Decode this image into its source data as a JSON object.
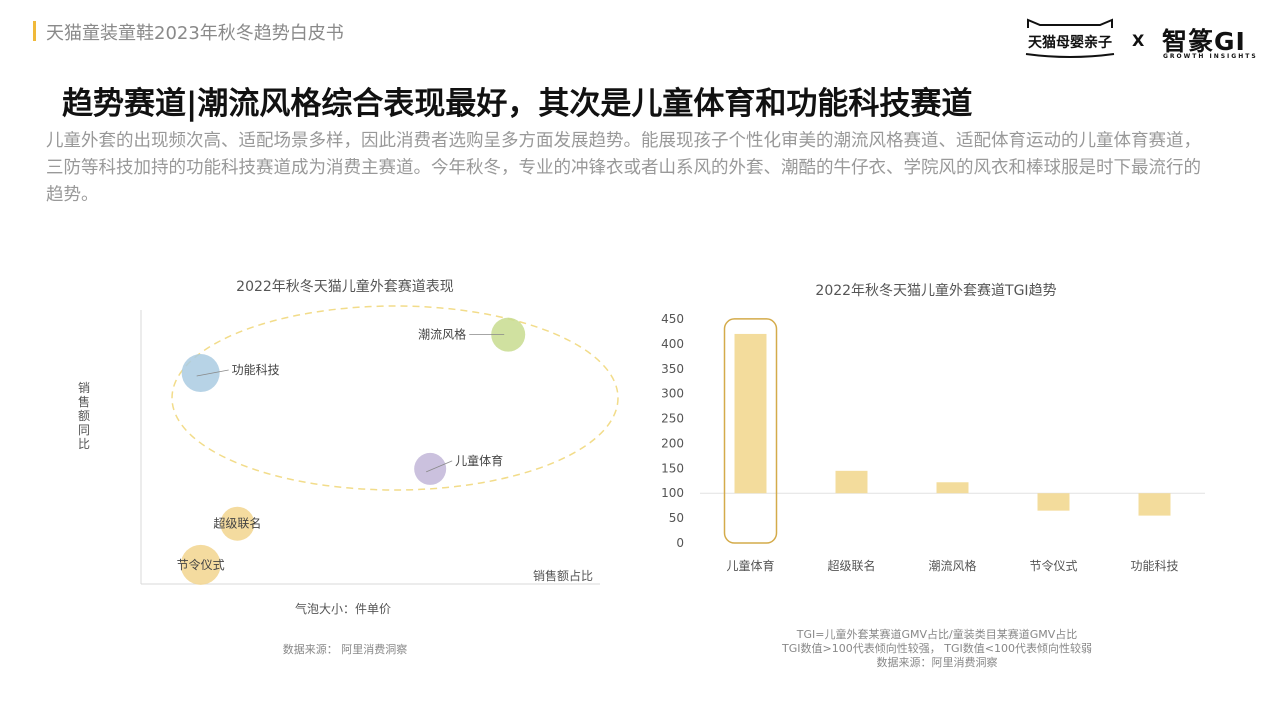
{
  "header": {
    "title": "天猫童装童鞋2023年秋冬趋势白皮书",
    "logo_tmall": "天猫母婴亲子",
    "logo_x": "X",
    "logo_gi": "智篆GI",
    "logo_gi_sub": "GROWTH INSIGHTS"
  },
  "main_title": "趋势赛道|潮流风格综合表现最好，其次是儿童体育和功能科技赛道",
  "intro": "儿童外套的出现频次高、适配场景多样，因此消费者选购呈多方面发展趋势。能展现孩子个性化审美的潮流风格赛道、适配体育运动的儿童体育赛道，三防等科技加持的功能科技赛道成为消费主赛道。今年秋冬，专业的冲锋衣或者山系风的外套、潮酷的牛仔衣、学院风的风衣和棒球服是时下最流行的趋势。",
  "chart_data": [
    {
      "type": "bubble",
      "title": "2022年秋冬天猫儿童外套赛道表现",
      "xlabel": "销售额占比",
      "ylabel": "销售额同比",
      "size_label": "气泡大小：件单价",
      "source": "数据来源： 阿里消费洞察",
      "xlim": [
        0,
        100
      ],
      "ylim": [
        0,
        100
      ],
      "points": [
        {
          "name": "潮流风格",
          "x": 80,
          "y": 91,
          "size": 17,
          "color": "#c8dc8f"
        },
        {
          "name": "功能科技",
          "x": 13,
          "y": 77,
          "size": 19,
          "color": "#aacbe2"
        },
        {
          "name": "儿童体育",
          "x": 63,
          "y": 42,
          "size": 16,
          "color": "#c2b6d8"
        },
        {
          "name": "超级联名",
          "x": 21,
          "y": 22,
          "size": 17,
          "color": "#f2d58e"
        },
        {
          "name": "节令仪式",
          "x": 13,
          "y": 7,
          "size": 20,
          "color": "#f2d58e"
        }
      ],
      "highlight_ellipse": {
        "color": "#f2dc8a"
      }
    },
    {
      "type": "bar",
      "title": "2022年秋冬天猫儿童外套赛道TGI趋势",
      "categories": [
        "儿童体育",
        "超级联名",
        "潮流风格",
        "节令仪式",
        "功能科技"
      ],
      "values": [
        420,
        145,
        122,
        65,
        55
      ],
      "baseline": 100,
      "ylim": [
        0,
        450
      ],
      "yticks": [
        "0",
        "50",
        "100",
        "150",
        "200",
        "250",
        "300",
        "350",
        "400",
        "450"
      ],
      "bar_color": "#f3dc9c",
      "highlight": {
        "category": "儿童体育",
        "color": "#d4ab4a"
      },
      "notes": [
        "TGI=儿童外套某赛道GMV占比/童装类目某赛道GMV占比",
        "TGI数值>100代表倾向性较强， TGI数值<100代表倾向性较弱",
        "数据来源：阿里消费洞察"
      ]
    }
  ]
}
